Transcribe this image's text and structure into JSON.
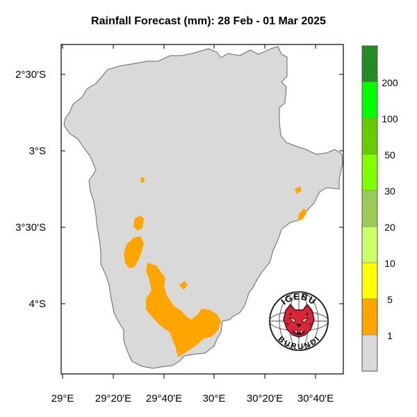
{
  "map": {
    "title": "Rainfall Forecast (mm): 28 Feb - 01 Mar 2025",
    "y_ticks": [
      {
        "value": -2.5,
        "label": "2°30'S"
      },
      {
        "value": -3.0,
        "label": "3°S"
      },
      {
        "value": -3.5,
        "label": "3°30'S"
      },
      {
        "value": -4.0,
        "label": "4°S"
      }
    ],
    "x_ticks": [
      {
        "value": 29.0,
        "label": "29°E"
      },
      {
        "value": 29.333,
        "label": "29°20'E"
      },
      {
        "value": 29.667,
        "label": "29°40'E"
      },
      {
        "value": 30.0,
        "label": "30°E"
      },
      {
        "value": 30.333,
        "label": "30°20'E"
      },
      {
        "value": 30.667,
        "label": "30°40'E"
      }
    ],
    "lon_range": [
      29.0,
      30.85
    ],
    "lat_range": [
      -2.3,
      -4.45
    ],
    "land_color": "#d9d9d9",
    "rain_color": "#ffa500"
  },
  "legend": {
    "labels": [
      "1",
      "5",
      "10",
      "20",
      "30",
      "50",
      "100",
      "200"
    ],
    "colors": [
      "#d9d9d9",
      "#ffa500",
      "#ffff00",
      "#ccff66",
      "#99cc55",
      "#80ff00",
      "#66cc00",
      "#00ff00",
      "#228b22"
    ]
  },
  "logo": {
    "top_text": "IGEBU",
    "bottom_text": "BURUNDI"
  }
}
